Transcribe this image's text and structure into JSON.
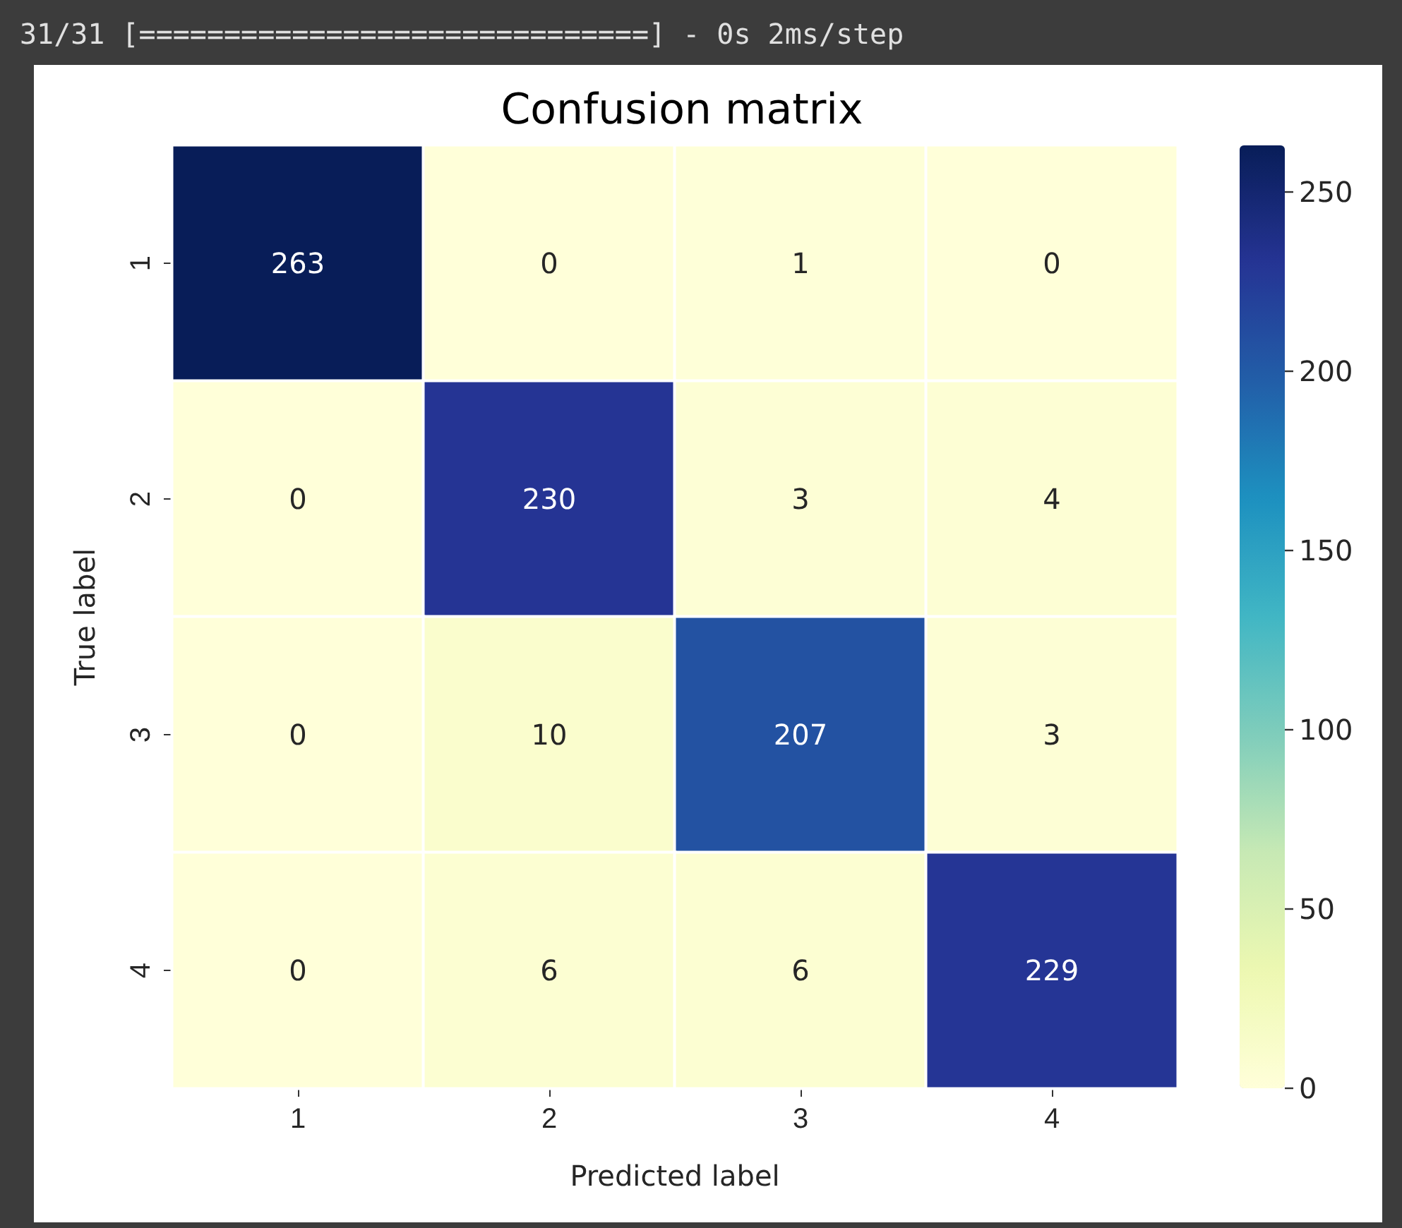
{
  "chart_data": {
    "type": "heatmap",
    "title": "Confusion matrix",
    "xlabel": "Predicted label",
    "ylabel": "True label",
    "annotations": [
      "31/31 [==============================] - 0s 2ms/step"
    ],
    "categories": [
      "1",
      "2",
      "3",
      "4"
    ],
    "y_categories": [
      "1",
      "2",
      "3",
      "4"
    ],
    "cells": [
      [
        263,
        0,
        1,
        0
      ],
      [
        0,
        230,
        3,
        4
      ],
      [
        0,
        10,
        207,
        3
      ],
      [
        0,
        6,
        6,
        229
      ]
    ],
    "data_labels": true,
    "clim": [
      0,
      263
    ],
    "cticks": [
      0,
      50,
      100,
      150,
      200,
      250
    ]
  }
}
